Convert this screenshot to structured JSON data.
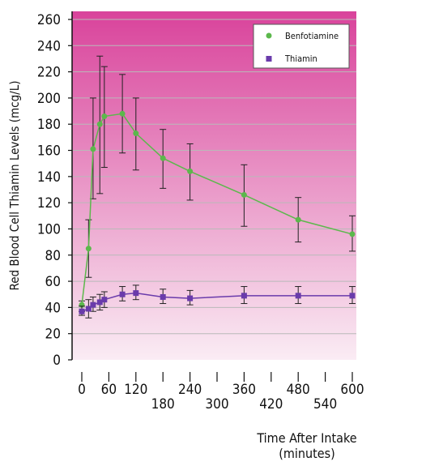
{
  "chart_data": {
    "type": "line",
    "title": "",
    "ylabel": "Red Blood Cell Thiamin Levels (mcg/L)",
    "xlabel_line1": "Time After Intake",
    "xlabel_line2": "(minutes)",
    "xlim": [
      0,
      600
    ],
    "ylim": [
      0,
      260
    ],
    "y_ticks": [
      0,
      20,
      40,
      60,
      80,
      100,
      120,
      140,
      160,
      180,
      200,
      220,
      240,
      260
    ],
    "x_ticks": [
      0,
      60,
      120,
      180,
      240,
      300,
      360,
      420,
      480,
      540,
      600
    ],
    "grid": "horizontal",
    "legend_position": "top-right",
    "background_gradient": [
      "#d9439b",
      "#faecf4"
    ],
    "series": [
      {
        "name": "Benfotiamine",
        "color": "#5cb84c",
        "marker": "circle",
        "x": [
          0,
          15,
          25,
          40,
          50,
          90,
          120,
          180,
          240,
          360,
          480,
          600
        ],
        "y": [
          42,
          85,
          161,
          180,
          186,
          188,
          173,
          154,
          144,
          126,
          107,
          96
        ],
        "err_low": [
          37,
          63,
          123,
          127,
          147,
          158,
          145,
          131,
          122,
          102,
          90,
          83
        ],
        "err_high": [
          45,
          107,
          200,
          232,
          224,
          218,
          200,
          176,
          165,
          149,
          124,
          110
        ]
      },
      {
        "name": "Thiamin",
        "color": "#6a3bab",
        "marker": "square",
        "x": [
          0,
          15,
          25,
          40,
          50,
          90,
          120,
          180,
          240,
          360,
          480,
          600
        ],
        "y": [
          37,
          39,
          42,
          44,
          46,
          50,
          51,
          48,
          47,
          49,
          49,
          49
        ],
        "err_low": [
          34,
          32,
          37,
          38,
          40,
          45,
          46,
          43,
          42,
          43,
          43,
          43
        ],
        "err_high": [
          41,
          46,
          48,
          50,
          52,
          56,
          57,
          54,
          53,
          56,
          56,
          56
        ]
      }
    ]
  }
}
